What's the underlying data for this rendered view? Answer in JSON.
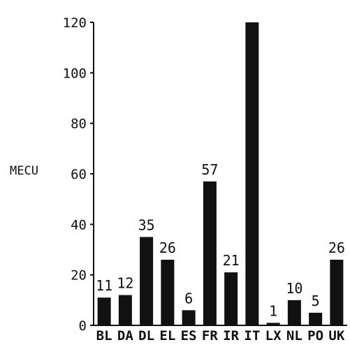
{
  "chart_data": {
    "type": "bar",
    "title": "",
    "xlabel": "",
    "ylabel": "MECU",
    "categories": [
      "BL",
      "DA",
      "DL",
      "EL",
      "ES",
      "FR",
      "IR",
      "IT",
      "LX",
      "NL",
      "PO",
      "UK"
    ],
    "values": [
      11,
      12,
      35,
      26,
      6,
      57,
      21,
      120,
      1,
      10,
      5,
      26
    ],
    "data_labels": [
      "11",
      "12",
      "35",
      "26",
      "6",
      "57",
      "21",
      "",
      "1",
      "10",
      "5",
      "26"
    ],
    "ylim": [
      0,
      120
    ],
    "yticks": [
      "0",
      "20",
      "40",
      "60",
      "80",
      "100",
      "120"
    ],
    "grid": false,
    "bar_color": "#111111"
  }
}
